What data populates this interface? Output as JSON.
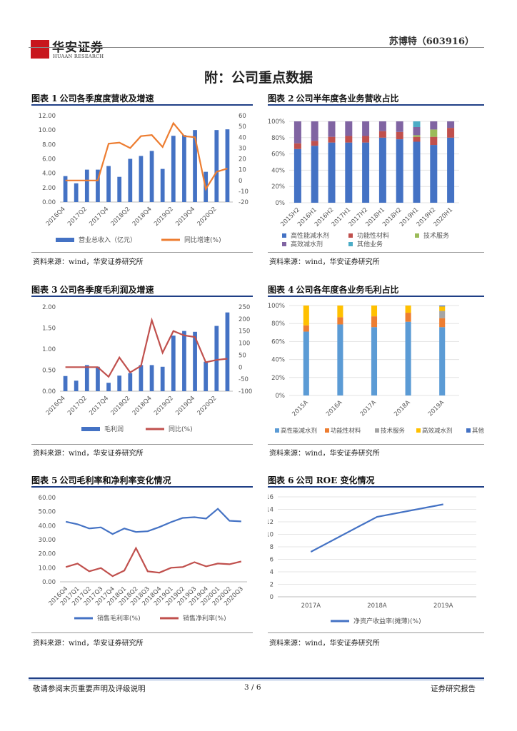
{
  "header": {
    "logo_cn": "华安证券",
    "logo_en": "HUAAN RESEARCH",
    "company": "苏博特（603916）"
  },
  "page_title": "附：公司重点数据",
  "sources": {
    "c1": "资料来源：wind，华安证券研究所",
    "c2": "资料来源：wind，华安证券研究所",
    "c3": "资料来源：wind，华安证券研究所",
    "c4": "资料来源：wind，华安证券研究所",
    "c5": "资料来源：wind，华安证券研究所",
    "c6": "资料来源：wind，华安证券研究所"
  },
  "footer": {
    "left": "敬请参阅末页重要声明及评级说明",
    "page": "3 / 6",
    "right": "证券研究报告"
  },
  "chart_data": [
    {
      "id": "c1",
      "label": "图表 1",
      "title": "公司各季度度营收及增速",
      "type": "bar",
      "categories": [
        "2016Q4",
        "2017Q1",
        "2017Q2",
        "2017Q3",
        "2017Q4",
        "2018Q1",
        "2018Q2",
        "2018Q3",
        "2018Q4",
        "2019Q1",
        "2019Q2",
        "2019Q3",
        "2019Q4",
        "2020Q1",
        "2020Q2",
        "2020Q3"
      ],
      "tick_labels": [
        "2016Q4",
        "2017Q2",
        "2017Q4",
        "2018Q2",
        "2018Q4",
        "2019Q2",
        "2019Q4",
        "2020Q2"
      ],
      "series": [
        {
          "name": "营业总收入（亿元）",
          "kind": "bar",
          "axis": "left",
          "color": "#4472c4",
          "values": [
            3.6,
            2.6,
            4.5,
            4.5,
            5.0,
            3.5,
            6.0,
            6.4,
            7.1,
            4.6,
            9.2,
            9.3,
            10.0,
            4.2,
            10.0,
            10.1
          ]
        },
        {
          "name": "同比增速(%)",
          "kind": "line",
          "axis": "right",
          "color": "#ed7d31",
          "values": [
            0,
            0,
            0,
            0,
            34,
            35,
            30,
            41,
            42,
            31,
            53,
            41,
            40,
            -8,
            8,
            11
          ]
        }
      ],
      "left_ticks": [
        "0.00",
        "2.00",
        "4.00",
        "6.00",
        "8.00",
        "10.00",
        "12.00"
      ],
      "ylim": [
        0,
        12
      ],
      "right_ticks": [
        "-20",
        "-10",
        "0",
        "10",
        "20",
        "30",
        "40",
        "50",
        "60"
      ],
      "y2lim": [
        -20,
        60
      ]
    },
    {
      "id": "c2",
      "label": "图表 2",
      "title": "公司半年度各业务营收占比",
      "type": "bar",
      "stacked": true,
      "categories": [
        "2015H2",
        "2016H1",
        "2016H2",
        "2017H1",
        "2017H2",
        "2018H1",
        "2018H2",
        "2019H1",
        "2019H2",
        "2020H1"
      ],
      "series": [
        {
          "name": "高性能减水剂",
          "color": "#4472c4",
          "values": [
            66,
            70,
            74,
            74,
            74,
            80,
            78,
            75,
            71,
            80
          ]
        },
        {
          "name": "功能性材料",
          "color": "#c0504d",
          "values": [
            7,
            6,
            7,
            8,
            8,
            8,
            9,
            6,
            10,
            12
          ]
        },
        {
          "name": "技术服务",
          "color": "#9bbb59",
          "values": [
            0,
            0,
            0,
            0,
            0,
            0,
            0,
            2,
            9,
            0
          ]
        },
        {
          "name": "高效减水剂",
          "color": "#8064a2",
          "values": [
            27,
            24,
            19,
            18,
            18,
            12,
            13,
            10,
            10,
            8
          ]
        },
        {
          "name": "其他业务",
          "color": "#4bacc6",
          "values": [
            0,
            0,
            0,
            0,
            0,
            0,
            0,
            7,
            0,
            0
          ]
        }
      ],
      "ticks": [
        "0%",
        "20%",
        "40%",
        "60%",
        "80%",
        "100%"
      ],
      "ylim": [
        0,
        100
      ]
    },
    {
      "id": "c3",
      "label": "图表 3",
      "title": "公司各季度毛利润及增速",
      "type": "bar",
      "categories": [
        "2016Q4",
        "2017Q1",
        "2017Q2",
        "2017Q3",
        "2017Q4",
        "2018Q1",
        "2018Q2",
        "2018Q3",
        "2018Q4",
        "2019Q1",
        "2019Q2",
        "2019Q3",
        "2019Q4",
        "2020Q1",
        "2020Q2",
        "2020Q3"
      ],
      "tick_labels": [
        "2016Q4",
        "2017Q2",
        "2017Q4",
        "2018Q2",
        "2018Q4",
        "2019Q2",
        "2019Q4",
        "2020Q2"
      ],
      "series": [
        {
          "name": "毛利润",
          "kind": "bar",
          "axis": "left",
          "color": "#4472c4",
          "values": [
            0.36,
            0.25,
            0.62,
            0.58,
            0.2,
            0.37,
            0.43,
            0.62,
            0.62,
            0.58,
            1.32,
            1.43,
            1.41,
            0.7,
            1.55,
            1.87
          ]
        },
        {
          "name": "同比(%)",
          "kind": "line",
          "axis": "right",
          "color": "#c0504d",
          "values": [
            0,
            0,
            0,
            0,
            -40,
            40,
            -22,
            5,
            195,
            60,
            150,
            132,
            125,
            20,
            30,
            35
          ]
        }
      ],
      "left_ticks": [
        "0.00",
        "0.50",
        "1.00",
        "1.50",
        "2.00"
      ],
      "ylim": [
        0,
        2
      ],
      "right_ticks": [
        "-100",
        "-50",
        "0",
        "50",
        "100",
        "150",
        "200",
        "250"
      ],
      "y2lim": [
        -100,
        250
      ]
    },
    {
      "id": "c4",
      "label": "图表 4",
      "title": "公司各年度各业务毛利占比",
      "type": "bar",
      "stacked": true,
      "categories": [
        "2015A",
        "2016A",
        "2017A",
        "2018A",
        "2019A"
      ],
      "series": [
        {
          "name": "高性能减水剂",
          "color": "#5b9bd5",
          "values": [
            71,
            79,
            76,
            82,
            76
          ]
        },
        {
          "name": "功能性材料",
          "color": "#ed7d31",
          "values": [
            7,
            8,
            12,
            10,
            10
          ]
        },
        {
          "name": "技术服务",
          "color": "#a5a5a5",
          "values": [
            0,
            0,
            0,
            0,
            8
          ]
        },
        {
          "name": "高效减水剂",
          "color": "#ffc000",
          "values": [
            22,
            13,
            12,
            8,
            5
          ]
        },
        {
          "name": "其他业务",
          "color": "#4472c4",
          "values": [
            0,
            0,
            0,
            0,
            1
          ]
        }
      ],
      "ticks": [
        "0%",
        "20%",
        "40%",
        "60%",
        "80%",
        "100%"
      ],
      "ylim": [
        0,
        100
      ]
    },
    {
      "id": "c5",
      "label": "图表 5",
      "title": "公司毛利率和净利率变化情况",
      "type": "line",
      "categories": [
        "2016Q4",
        "2017Q1",
        "2017Q2",
        "2017Q3",
        "2017Q4",
        "2018Q1",
        "2018Q2",
        "2018Q3",
        "2018Q4",
        "2019Q1",
        "2019Q2",
        "2019Q3",
        "2019Q4",
        "2020Q1",
        "2020Q2",
        "2020Q3"
      ],
      "series": [
        {
          "name": "销售毛利率(%)",
          "color": "#4472c4",
          "values": [
            42.8,
            41.0,
            38.0,
            38.8,
            34.0,
            38.0,
            35.5,
            36.0,
            39.0,
            42.5,
            45.5,
            46.0,
            45.0,
            52.0,
            43.5,
            43.0
          ]
        },
        {
          "name": "销售净利率(%)",
          "color": "#c0504d",
          "values": [
            10.5,
            13.0,
            7.5,
            9.8,
            4.0,
            8.0,
            24.0,
            7.5,
            6.5,
            10.0,
            10.5,
            14.0,
            11.0,
            13.0,
            12.5,
            14.5
          ]
        }
      ],
      "ticks": [
        "0.00",
        "10.00",
        "20.00",
        "30.00",
        "40.00",
        "50.00",
        "60.00"
      ],
      "ylim": [
        0,
        60
      ]
    },
    {
      "id": "c6",
      "label": "图表 6",
      "title": "公司 ROE 变化情况",
      "type": "line",
      "categories": [
        "2017A",
        "2018A",
        "2019A"
      ],
      "series": [
        {
          "name": "净资产收益率(摊薄)(%)",
          "color": "#4472c4",
          "values": [
            7.2,
            12.8,
            14.8
          ]
        }
      ],
      "ticks": [
        "0",
        "2",
        "4",
        "6",
        "8",
        "10",
        "12",
        "14",
        "16"
      ],
      "ylim": [
        0,
        16
      ]
    }
  ]
}
